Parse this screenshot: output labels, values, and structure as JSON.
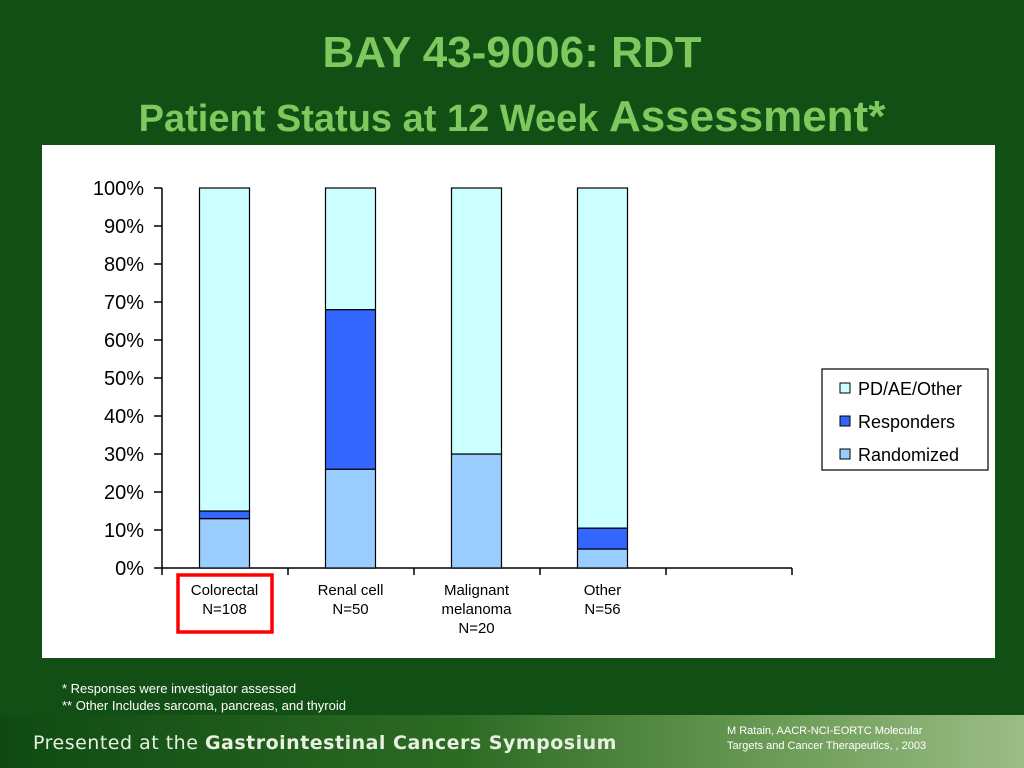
{
  "title": {
    "line1": "BAY 43-9006: RDT",
    "line2_part1": "Patient Status at 12 Week",
    "line2_part2": "Assessment*"
  },
  "chart_data": {
    "type": "bar",
    "stacked": true,
    "categories": [
      [
        "Colorectal",
        "N=108"
      ],
      [
        "Renal cell",
        "N=50"
      ],
      [
        "Malignant",
        "melanoma",
        "N=20"
      ],
      [
        "Other",
        "N=56"
      ]
    ],
    "series": [
      {
        "name": "Randomized",
        "values": [
          13,
          26,
          30,
          5
        ],
        "color": "#99ccff"
      },
      {
        "name": "Responders",
        "values": [
          2,
          42,
          0,
          5.5
        ],
        "color": "#3366ff"
      },
      {
        "name": "PD/AE/Other",
        "values": [
          85,
          32,
          70,
          89.5
        ],
        "color": "#ccffff"
      }
    ],
    "legend_order": [
      "PD/AE/Other",
      "Responders",
      "Randomized"
    ],
    "yticks": [
      "0%",
      "10%",
      "20%",
      "30%",
      "40%",
      "50%",
      "60%",
      "70%",
      "80%",
      "90%",
      "100%"
    ],
    "ylim": [
      0,
      100
    ],
    "xlabel": "",
    "ylabel": "",
    "grid": false,
    "legend_position": "right",
    "highlight_category": 0,
    "highlight_color": "#ff0000"
  },
  "notes": {
    "line1": "* Responses were investigator assessed",
    "line2": "** Other  Includes sarcoma, pancreas, and thyroid"
  },
  "footer": {
    "presented_prefix": "Presented at the ",
    "presented_name": "Gastrointestinal Cancers Symposium",
    "citation_line1": "M Ratain, AACR-NCI-EORTC Molecular",
    "citation_line2": "Targets and Cancer Therapeutics, , 2003"
  }
}
